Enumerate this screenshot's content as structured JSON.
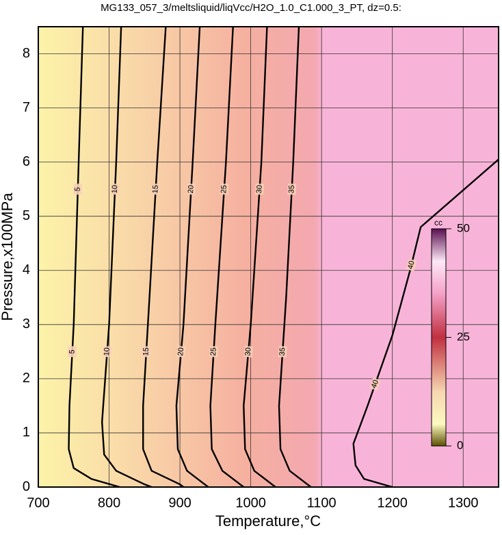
{
  "chart_data": {
    "type": "contour",
    "title": "MG133_057_3/meltsliquid/liqVcc/H2O_1.0_C1.000_3_PT, dz=0.5:",
    "xlabel": "Temperature,°C",
    "ylabel": "Pressure,x100MPa",
    "xlim": [
      700,
      1350
    ],
    "ylim": [
      0,
      8.5
    ],
    "xticks": [
      700,
      800,
      900,
      1000,
      1100,
      1200,
      1300
    ],
    "yticks": [
      0,
      1,
      2,
      3,
      4,
      5,
      6,
      7,
      8
    ],
    "grid": true,
    "zlabel": "cc",
    "zlim": [
      0,
      50
    ],
    "zticks": [
      0,
      25,
      50
    ],
    "contours": [
      {
        "level": 5,
        "x": [
          763,
          757,
          750,
          744,
          743,
          750,
          775,
          815
        ],
        "y": [
          8.5,
          6,
          3,
          1.5,
          0.7,
          0.35,
          0.15,
          0
        ]
      },
      {
        "level": 10,
        "x": [
          817,
          810,
          800,
          790,
          793,
          810,
          850,
          860
        ],
        "y": [
          8.5,
          6,
          3,
          1.2,
          0.6,
          0.3,
          0.05,
          0
        ]
      },
      {
        "level": 15,
        "x": [
          880,
          868,
          857,
          848,
          848,
          860,
          900,
          905
        ],
        "y": [
          8.5,
          6,
          3.5,
          1.5,
          0.7,
          0.3,
          0.05,
          0
        ]
      },
      {
        "level": 20,
        "x": [
          928,
          918,
          905,
          895,
          897,
          910,
          935,
          940
        ],
        "y": [
          8.5,
          6,
          3,
          1.5,
          0.7,
          0.3,
          0.05,
          0
        ]
      },
      {
        "level": 25,
        "x": [
          975,
          965,
          950,
          943,
          945,
          960,
          985,
          990
        ],
        "y": [
          8.5,
          6,
          3,
          1.5,
          0.7,
          0.3,
          0.05,
          0
        ]
      },
      {
        "level": 30,
        "x": [
          1023,
          1015,
          1000,
          990,
          992,
          1005,
          1030,
          1035
        ],
        "y": [
          8.5,
          6,
          3,
          1.5,
          0.7,
          0.3,
          0.05,
          0
        ]
      },
      {
        "level": 35,
        "x": [
          1068,
          1060,
          1050,
          1040,
          1042,
          1055,
          1080,
          1085
        ],
        "y": [
          8.5,
          6,
          3.5,
          1.5,
          0.7,
          0.3,
          0.05,
          0
        ]
      },
      {
        "level": 40,
        "x": [
          1350,
          1240,
          1225,
          1200,
          1165,
          1145,
          1148,
          1160,
          1200
        ],
        "y": [
          6.05,
          4.8,
          4,
          2.8,
          1.5,
          0.8,
          0.4,
          0.15,
          0
        ]
      }
    ]
  }
}
